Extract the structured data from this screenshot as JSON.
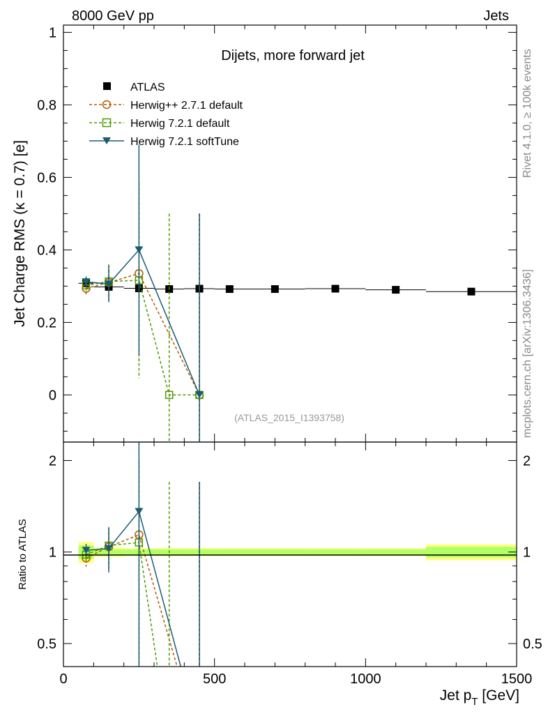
{
  "header": {
    "left_label": "8000 GeV pp",
    "right_label": "Jets"
  },
  "side_labels": {
    "rivet": "Rivet 4.1.0, ≥ 100k events",
    "source": "mcplots.cern.ch [arXiv:1306.3436]"
  },
  "colors": {
    "atlas": "#000000",
    "herwigpp": "#b35900",
    "herwig72_default": "#4d9900",
    "herwig72_softtune": "#1a5c73",
    "band_inner": "#b3ff66",
    "band_outer": "#ffff80"
  },
  "chart_data": [
    {
      "type": "scatter",
      "title": "Dijets, more forward jet",
      "annotation": "(ATLAS_2015_I1393758)",
      "xlabel_main": "Jet p",
      "xlabel_sub": "T",
      "xlabel_unit": " [GeV]",
      "ylabel": "Jet Charge RMS (κ = 0.7) [e]",
      "xlim": [
        0,
        1500
      ],
      "ylim": [
        -0.13,
        1.02
      ],
      "yticks": [
        0,
        0.2,
        0.4,
        0.6,
        0.8,
        1
      ],
      "ytick_labels": [
        "0",
        "0.2",
        "0.4",
        "0.6",
        "0.8",
        "1"
      ],
      "legend_position": "top-left",
      "series": [
        {
          "name": "ATLAS",
          "style": "data",
          "x": [
            75,
            150,
            250,
            350,
            450,
            550,
            700,
            900,
            1100,
            1350
          ],
          "xerr": [
            25,
            50,
            50,
            50,
            50,
            50,
            100,
            100,
            100,
            150
          ],
          "y": [
            0.308,
            0.298,
            0.294,
            0.292,
            0.293,
            0.292,
            0.292,
            0.293,
            0.29,
            0.285
          ],
          "yerr": [
            0.005,
            0.005,
            0.005,
            0.005,
            0.005,
            0.005,
            0.005,
            0.005,
            0.005,
            0.006
          ]
        },
        {
          "name": "Herwig++ 2.7.1 default",
          "style": "circle",
          "x": [
            75,
            150,
            250,
            450
          ],
          "y": [
            0.294,
            0.31,
            0.335,
            0.0
          ],
          "yerr": [
            0.018,
            0.05,
            0.25,
            0.5
          ]
        },
        {
          "name": "Herwig 7.2.1 default",
          "style": "square",
          "x": [
            75,
            150,
            250,
            350,
            450
          ],
          "y": [
            0.302,
            0.313,
            0.316,
            0.0,
            0.0
          ],
          "yerr": [
            0.015,
            0.045,
            0.27,
            0.5,
            0.5
          ]
        },
        {
          "name": "Herwig 7.2.1 softTune",
          "style": "triangle",
          "x": [
            75,
            150,
            250,
            450
          ],
          "y": [
            0.312,
            0.306,
            0.4,
            0.0
          ],
          "yerr": [
            0.015,
            0.05,
            0.29,
            0.5
          ]
        }
      ]
    },
    {
      "type": "scatter",
      "title": "Ratio to ATLAS",
      "ylabel": "Ratio to ATLAS",
      "xlim": [
        0,
        1500
      ],
      "ylim": [
        0.42,
        2.3
      ],
      "yscale": "log",
      "yticks": [
        0.5,
        1,
        2
      ],
      "ytick_labels": [
        "0.5",
        "1",
        "2"
      ],
      "xticks": [
        0,
        500,
        1000,
        1500
      ],
      "xtick_labels": [
        "0",
        "500",
        "1000",
        "1500"
      ],
      "band": {
        "x": [
          50,
          100,
          200,
          300,
          400,
          500,
          600,
          800,
          1000,
          1200,
          1500
        ],
        "inner_half_width": [
          0.05,
          0.02,
          0.02,
          0.02,
          0.02,
          0.02,
          0.02,
          0.02,
          0.02,
          0.04
        ],
        "outer_half_width": [
          0.08,
          0.035,
          0.03,
          0.03,
          0.03,
          0.03,
          0.03,
          0.03,
          0.03,
          0.06
        ]
      },
      "series": [
        {
          "name": "Herwig++ 2.7.1 default",
          "style": "circle",
          "x": [
            75,
            150,
            250,
            450
          ],
          "y": [
            0.955,
            1.04,
            1.14,
            0.0
          ],
          "yerr": [
            0.06,
            0.17,
            0.85,
            1.7
          ]
        },
        {
          "name": "Herwig 7.2.1 default",
          "style": "square",
          "x": [
            75,
            150,
            250,
            350,
            450
          ],
          "y": [
            0.98,
            1.05,
            1.075,
            0.0,
            0.0
          ],
          "yerr": [
            0.05,
            0.15,
            0.92,
            1.7,
            1.7
          ]
        },
        {
          "name": "Herwig 7.2.1 softTune",
          "style": "triangle",
          "x": [
            75,
            150,
            250,
            450
          ],
          "y": [
            1.013,
            1.027,
            1.36,
            0.0
          ],
          "yerr": [
            0.05,
            0.17,
            0.99,
            1.7
          ]
        }
      ]
    }
  ]
}
